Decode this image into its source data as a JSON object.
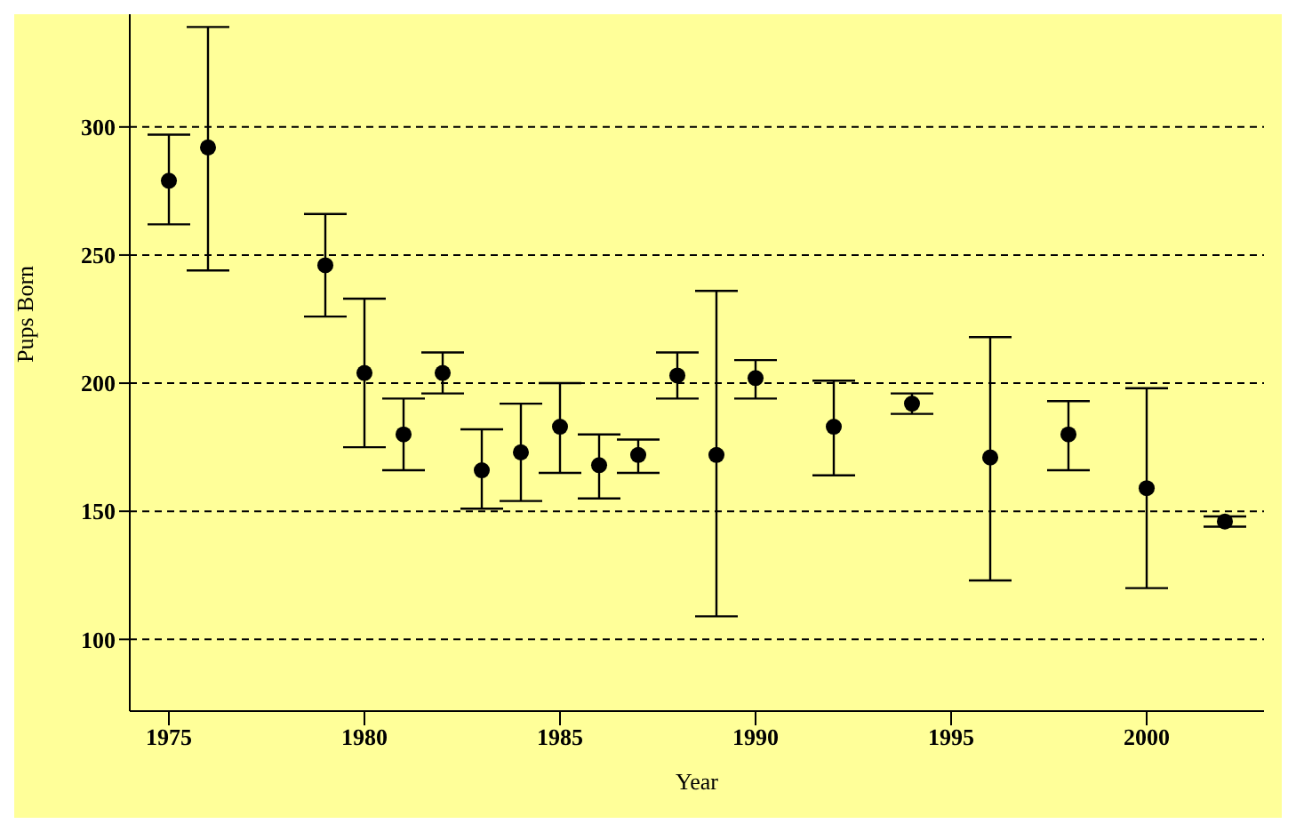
{
  "chart_data": {
    "type": "scatter",
    "xlabel": "Year",
    "ylabel": "Pups Born",
    "x": [
      1975,
      1976,
      1979,
      1980,
      1981,
      1982,
      1983,
      1984,
      1985,
      1986,
      1987,
      1988,
      1989,
      1990,
      1992,
      1994,
      1996,
      1998,
      2000,
      2002
    ],
    "values": [
      279,
      292,
      246,
      204,
      180,
      204,
      166,
      173,
      183,
      168,
      172,
      203,
      172,
      202,
      183,
      192,
      171,
      180,
      159,
      146
    ],
    "errors": [
      [
        262,
        297
      ],
      [
        244,
        339
      ],
      [
        226,
        266
      ],
      [
        175,
        233
      ],
      [
        166,
        194
      ],
      [
        196,
        212
      ],
      [
        151,
        182
      ],
      [
        154,
        192
      ],
      [
        165,
        200
      ],
      [
        155,
        180
      ],
      [
        165,
        178
      ],
      [
        194,
        212
      ],
      [
        109,
        236
      ],
      [
        194,
        209
      ],
      [
        164,
        201
      ],
      [
        188,
        196
      ],
      [
        123,
        218
      ],
      [
        166,
        193
      ],
      [
        120,
        198
      ],
      [
        144,
        148
      ]
    ],
    "color": "#000000",
    "marker": "circle",
    "grid": "y",
    "xlim": [
      1974,
      2003
    ],
    "xticks": [
      1975,
      1980,
      1985,
      1990,
      1995,
      2000
    ],
    "ylim": [
      72,
      344
    ],
    "yticks": [
      100,
      150,
      200,
      250,
      300
    ]
  }
}
